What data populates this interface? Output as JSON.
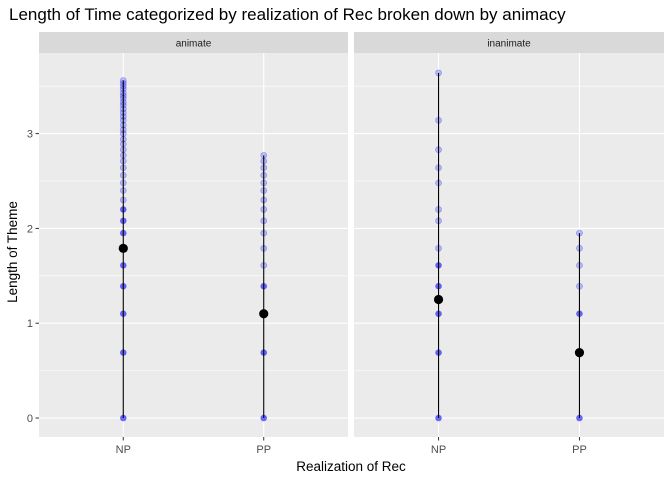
{
  "chart_data": {
    "type": "scatter",
    "title": "Length of Time categorized by realization of Rec broken down by animacy",
    "xlabel": "Realization of Rec",
    "ylabel": "Length of Theme",
    "categories": [
      "NP",
      "PP"
    ],
    "ylim": [
      -0.2,
      3.85
    ],
    "yticks": [
      "0",
      "1",
      "2",
      "3"
    ],
    "grid": true,
    "point_color": "#0000ff",
    "summary_color": "#000000",
    "panel_background": "#ebebeb",
    "strip_background": "#d9d9d9",
    "facets": [
      {
        "label": "animate",
        "groups": [
          {
            "category": "NP",
            "values": [
              0,
              0.69,
              1.1,
              1.39,
              1.61,
              1.79,
              1.95,
              2.08,
              2.2,
              2.3,
              2.4,
              2.48,
              2.56,
              2.64,
              2.71,
              2.77,
              2.83,
              2.89,
              2.94,
              3.0,
              3.04,
              3.09,
              3.14,
              3.18,
              3.22,
              3.26,
              3.3,
              3.33,
              3.37,
              3.4,
              3.43,
              3.47,
              3.5,
              3.53,
              3.56
            ],
            "mean": 1.79,
            "range": [
              0,
              3.56
            ]
          },
          {
            "category": "PP",
            "values": [
              0,
              0.69,
              1.1,
              1.39,
              1.61,
              1.79,
              1.95,
              2.08,
              2.2,
              2.3,
              2.4,
              2.48,
              2.56,
              2.64,
              2.71,
              2.77
            ],
            "mean": 1.1,
            "range": [
              0,
              2.77
            ]
          }
        ]
      },
      {
        "label": "inanimate",
        "groups": [
          {
            "category": "NP",
            "values": [
              0,
              0.69,
              1.1,
              1.39,
              1.61,
              1.79,
              2.08,
              2.2,
              2.48,
              2.64,
              2.83,
              3.14,
              3.64
            ],
            "mean": 1.25,
            "range": [
              0,
              3.64
            ]
          },
          {
            "category": "PP",
            "values": [
              0,
              0.69,
              1.1,
              1.39,
              1.61,
              1.79,
              1.95
            ],
            "mean": 0.69,
            "range": [
              0,
              1.95
            ]
          }
        ]
      }
    ]
  }
}
